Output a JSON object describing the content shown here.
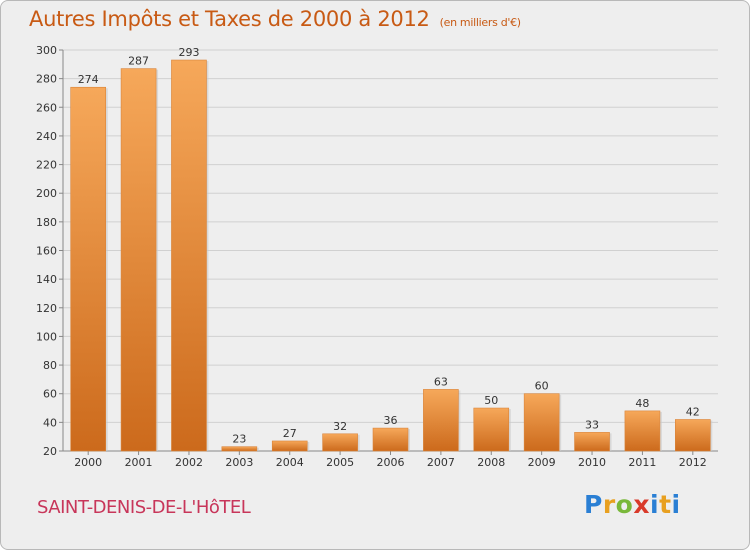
{
  "header": {
    "title": "Autres Impôts et Taxes de 2000 à 2012",
    "subtitle": "(en milliers d'€)"
  },
  "footer": {
    "place": "SAINT-DENIS-DE-L'HôTEL",
    "logo_letters": [
      "P",
      "r",
      "o",
      "x",
      "i",
      "t",
      "i"
    ],
    "logo_colors": [
      "#2a7fd4",
      "#e8a020",
      "#79b83a",
      "#d93a2a",
      "#2a7fd4",
      "#e8a020",
      "#2a7fd4"
    ]
  },
  "colors": {
    "bar_light": "#f6a85a",
    "bar_dark": "#cc6a1c",
    "accent": "#c85a14",
    "place": "#c8365a",
    "grid": "#d0d0d0"
  },
  "chart_data": {
    "type": "bar",
    "title": "Autres Impôts et Taxes de 2000 à 2012",
    "subtitle": "(en milliers d'€)",
    "categories": [
      "2000",
      "2001",
      "2002",
      "2003",
      "2004",
      "2005",
      "2006",
      "2007",
      "2008",
      "2009",
      "2010",
      "2011",
      "2012"
    ],
    "values": [
      274,
      287,
      293,
      23,
      27,
      32,
      36,
      63,
      50,
      60,
      33,
      48,
      42
    ],
    "ylim": [
      20,
      300
    ],
    "yticks": [
      20,
      40,
      60,
      80,
      100,
      120,
      140,
      160,
      180,
      200,
      220,
      240,
      260,
      280,
      300
    ],
    "grid": true,
    "data_labels": true
  }
}
